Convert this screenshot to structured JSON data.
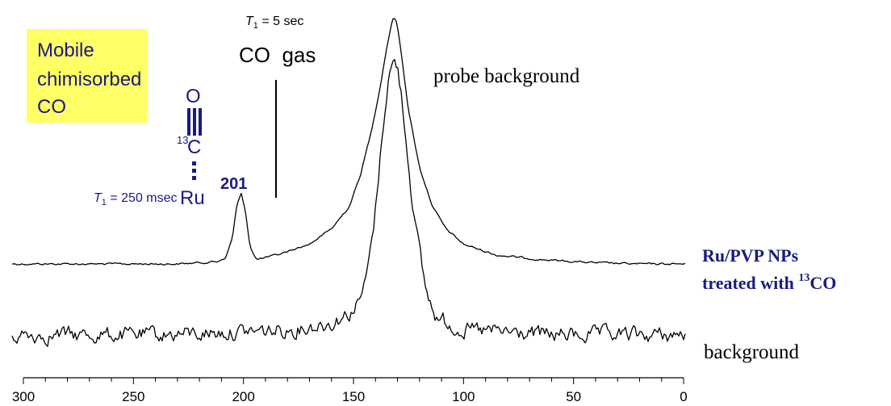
{
  "chart_data": {
    "type": "line",
    "xlabel": "",
    "ylabel": "",
    "xlim": [
      300,
      0
    ],
    "x_ticks": [
      300,
      250,
      200,
      150,
      100,
      50,
      0
    ],
    "grid": false,
    "series": [
      {
        "name": "Ru/PVP NPs treated with 13CO",
        "x": [
          305,
          260,
          230,
          212,
          208,
          205,
          203,
          201,
          199,
          197,
          194,
          185,
          170,
          160,
          152,
          147,
          142,
          138,
          135,
          133,
          132,
          131,
          130,
          128,
          125,
          120,
          114,
          108,
          100,
          85,
          65,
          40,
          20,
          5
        ],
        "y": [
          0.0,
          0.0,
          0.0,
          0.01,
          0.03,
          0.12,
          0.27,
          0.32,
          0.23,
          0.08,
          0.02,
          0.04,
          0.09,
          0.16,
          0.26,
          0.4,
          0.6,
          0.8,
          0.98,
          1.08,
          1.12,
          1.12,
          1.08,
          0.94,
          0.7,
          0.44,
          0.26,
          0.16,
          0.09,
          0.04,
          0.02,
          0.005,
          0.0,
          0.0
        ]
      },
      {
        "name": "background",
        "x": [
          305,
          240,
          180,
          160,
          152,
          148,
          145,
          142,
          140,
          138,
          136,
          134,
          132,
          131,
          130,
          128,
          126,
          124,
          122,
          120,
          118,
          116,
          112,
          100,
          60,
          5
        ],
        "y": [
          0.0,
          0.0,
          0.02,
          0.05,
          0.09,
          0.13,
          0.2,
          0.36,
          0.52,
          0.72,
          0.92,
          1.07,
          1.12,
          1.13,
          1.1,
          0.98,
          0.8,
          0.62,
          0.47,
          0.34,
          0.23,
          0.15,
          0.07,
          0.02,
          0.0,
          0.0
        ]
      }
    ]
  },
  "labels": {
    "yellow_box_lines": [
      "Mobile",
      "chimisorbed",
      "CO"
    ],
    "t1_gas_symbol": "T",
    "t1_gas_sub": "1",
    "t1_gas_value": " = 5 sec",
    "co_gas": "CO  gas",
    "probe_background": "probe background",
    "struct_o": "O",
    "struct_c_mass": "13",
    "struct_c": "C",
    "struct_ru": "Ru",
    "peak_label": "201",
    "t1_chem_symbol": "T",
    "t1_chem_sub": "1",
    "t1_chem_value": " = 250 msec",
    "sample_line1": "Ru/PVP NPs",
    "sample_line2_pre": "treated with ",
    "sample_line2_sup": "13",
    "sample_line2_post": "CO",
    "background": "background"
  },
  "colors": {
    "highlight_box": "#ffff66",
    "annotation_blue": "#1a1a80",
    "trace": "#000000"
  }
}
